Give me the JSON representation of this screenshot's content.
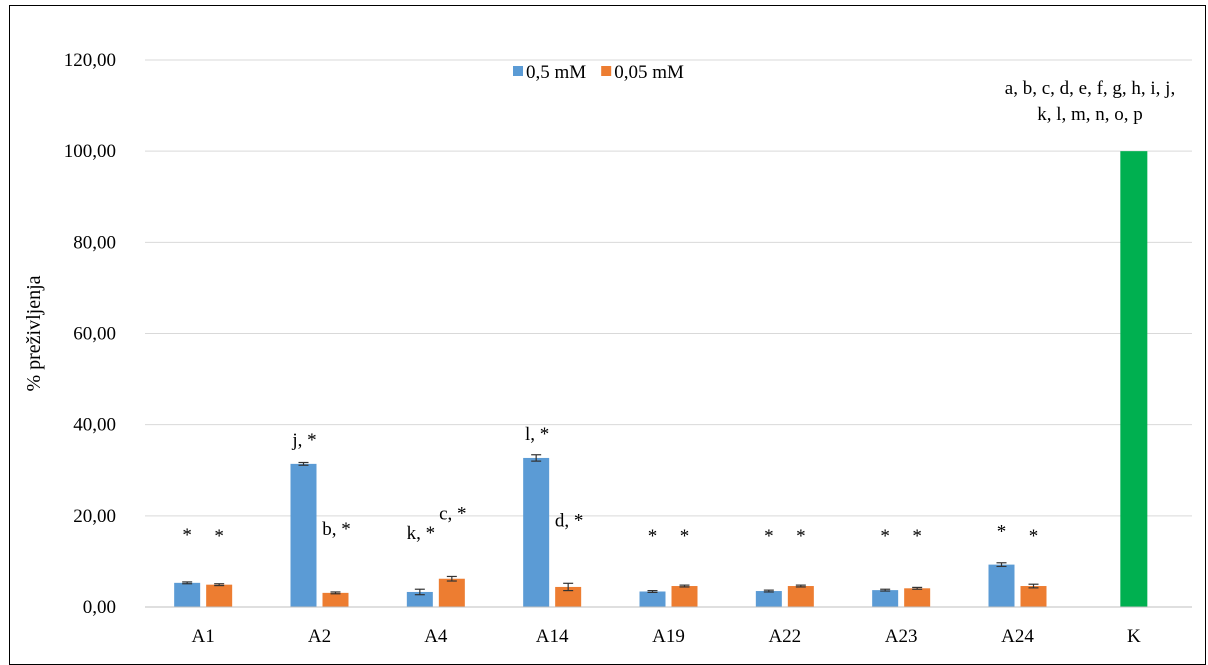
{
  "chart_data": {
    "type": "bar",
    "title": "",
    "xlabel": "",
    "ylabel": "% preživljenja",
    "ylim": [
      0,
      120
    ],
    "y_ticks": [
      "0,00",
      "20,00",
      "40,00",
      "60,00",
      "80,00",
      "100,00",
      "120,00"
    ],
    "grid": true,
    "legend_position": "top-center",
    "categories": [
      "A1",
      "A2",
      "A4",
      "A14",
      "A19",
      "A22",
      "A23",
      "A24",
      "K"
    ],
    "series": [
      {
        "name": "0,5 mM",
        "color": "#5B9BD5",
        "values": [
          5.3,
          31.4,
          3.3,
          32.7,
          3.4,
          3.5,
          3.7,
          9.3,
          null
        ],
        "errors": [
          0.2,
          0.3,
          0.6,
          0.7,
          0.2,
          0.2,
          0.2,
          0.4,
          null
        ],
        "annotations": [
          "*",
          "j, *",
          "k, *",
          "l, *",
          "*",
          "*",
          "*",
          "*",
          ""
        ]
      },
      {
        "name": "0,05 mM",
        "color": "#ED7D31",
        "values": [
          4.9,
          3.1,
          6.2,
          4.4,
          4.6,
          4.6,
          4.1,
          4.6,
          null
        ],
        "errors": [
          0.2,
          0.2,
          0.5,
          0.8,
          0.2,
          0.2,
          0.2,
          0.4,
          null
        ],
        "annotations": [
          "*",
          "b, *",
          "c, *",
          "d, *",
          "*",
          "*",
          "*",
          "*",
          ""
        ]
      }
    ],
    "control": {
      "category": "K",
      "value": 100.0,
      "color": "#00B050",
      "annotation_lines": [
        "a, b, c, d, e, f, g, h, i, j,",
        "k, l, m, n, o, p"
      ]
    }
  }
}
